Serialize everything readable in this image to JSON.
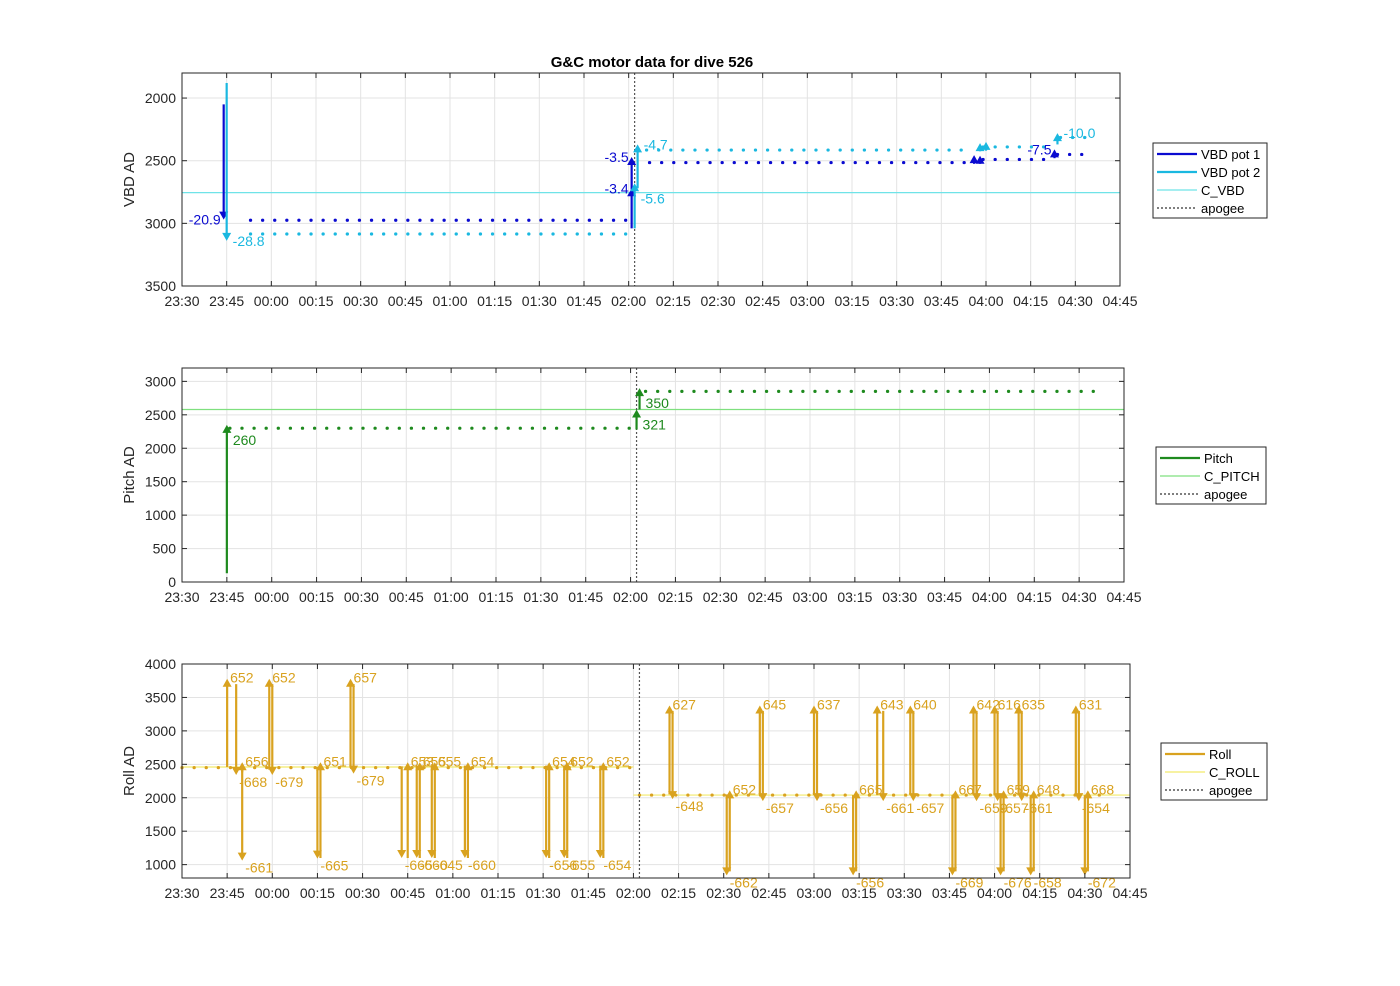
{
  "title": "G&C motor data for dive 526",
  "colors": {
    "vbd1": "#0a0ad0",
    "vbd2": "#1ab8e0",
    "c_vbd": "#6fe3e8",
    "pitch": "#1e8a1e",
    "c_pitch": "#7fe07f",
    "roll": "#d9a21f",
    "c_roll": "#f2ea6a",
    "apogee": "#555555",
    "grid": "#e3e3e3",
    "axis": "#262626"
  },
  "chart_data": [
    {
      "type": "line",
      "id": "vbd",
      "ylabel": "VBD AD",
      "y_reversed": true,
      "ylim": [
        1800,
        3500
      ],
      "yticks": [
        2000,
        2500,
        3000,
        3500
      ],
      "xlim": [
        "23:30",
        "04:45"
      ],
      "xticks": [
        "23:30",
        "23:45",
        "00:00",
        "00:15",
        "00:30",
        "00:45",
        "01:00",
        "01:15",
        "01:30",
        "01:45",
        "02:00",
        "02:15",
        "02:30",
        "02:45",
        "03:00",
        "03:15",
        "03:30",
        "03:45",
        "04:00",
        "04:15",
        "04:30",
        "04:45"
      ],
      "grid": true,
      "legend": [
        "VBD pot 1",
        "VBD pot 2",
        "C_VBD",
        "apogee"
      ],
      "series": [
        {
          "name": "VBD pot 1",
          "segments": [
            {
              "from": "23:53",
              "to": "02:00",
              "value": 2975
            },
            {
              "from": "02:07",
              "to": "03:55",
              "value": 2515
            },
            {
              "from": "03:59",
              "to": "04:22",
              "value": 2490
            },
            {
              "from": "04:24",
              "to": "04:35",
              "value": 2450
            }
          ]
        },
        {
          "name": "VBD pot 2",
          "segments": [
            {
              "from": "23:53",
              "to": "02:00",
              "value": 3085
            },
            {
              "from": "02:06",
              "to": "03:55",
              "value": 2415
            },
            {
              "from": "03:59",
              "to": "04:22",
              "value": 2390
            },
            {
              "from": "04:25",
              "to": "04:37",
              "value": 2315
            }
          ]
        }
      ],
      "reference_line": {
        "name": "C_VBD",
        "value": 2755
      },
      "apogee": "02:02",
      "moves": [
        {
          "series": "VBD pot 1",
          "time": "23:44",
          "from": 2050,
          "to": 2970,
          "label": "-20.9",
          "label_side": "left"
        },
        {
          "series": "VBD pot 2",
          "time": "23:45",
          "from": 1880,
          "to": 3140,
          "label": "-28.8",
          "label_side": "right"
        },
        {
          "series": "VBD pot 1",
          "time": "02:01",
          "from": 3040,
          "to": 2720,
          "label": "-3.4",
          "label_side": "left"
        },
        {
          "series": "VBD pot 1",
          "time": "02:01",
          "from": 2730,
          "to": 2470,
          "label": "-3.5",
          "label_side": "left"
        },
        {
          "series": "VBD pot 2",
          "time": "02:02",
          "from": 3040,
          "to": 2680,
          "label": "-5.6",
          "label_side": "right-below"
        },
        {
          "series": "VBD pot 2",
          "time": "02:03",
          "from": 2720,
          "to": 2370,
          "label": "-4.7",
          "label_side": "right"
        },
        {
          "series": "VBD pot 1",
          "time": "03:56",
          "from": 2525,
          "to": 2455,
          "label": "",
          "label_side": "none"
        },
        {
          "series": "VBD pot 1",
          "time": "03:58",
          "from": 2525,
          "to": 2460,
          "label": "",
          "label_side": "none"
        },
        {
          "series": "VBD pot 2",
          "time": "03:58",
          "from": 2425,
          "to": 2360,
          "label": "",
          "label_side": "none"
        },
        {
          "series": "VBD pot 2",
          "time": "04:00",
          "from": 2420,
          "to": 2350,
          "label": "",
          "label_side": "none"
        },
        {
          "series": "VBD pot 1",
          "time": "04:23",
          "from": 2480,
          "to": 2410,
          "label": "-7.5",
          "label_side": "left"
        },
        {
          "series": "VBD pot 2",
          "time": "04:24",
          "from": 2370,
          "to": 2280,
          "label": "-10.0",
          "label_side": "right"
        }
      ]
    },
    {
      "type": "line",
      "id": "pitch",
      "ylabel": "Pitch AD",
      "ylim": [
        0,
        3200
      ],
      "yticks": [
        0,
        500,
        1000,
        1500,
        2000,
        2500,
        3000
      ],
      "xlim": [
        "23:30",
        "04:45"
      ],
      "xticks": [
        "23:30",
        "23:45",
        "00:00",
        "00:15",
        "00:30",
        "00:45",
        "01:00",
        "01:15",
        "01:30",
        "01:45",
        "02:00",
        "02:15",
        "02:30",
        "02:45",
        "03:00",
        "03:15",
        "03:30",
        "03:45",
        "04:00",
        "04:15",
        "04:30",
        "04:45"
      ],
      "grid": true,
      "legend": [
        "Pitch",
        "C_PITCH",
        "apogee"
      ],
      "series": [
        {
          "name": "Pitch",
          "segments": [
            {
              "from": "23:46",
              "to": "02:00",
              "value": 2300
            },
            {
              "from": "02:05",
              "to": "04:35",
              "value": 2850
            }
          ]
        }
      ],
      "reference_line": {
        "name": "C_PITCH",
        "value": 2580
      },
      "apogee": "02:02",
      "moves": [
        {
          "series": "Pitch",
          "time": "23:45",
          "from": 130,
          "to": 2350,
          "label": "260",
          "label_side": "right-below"
        },
        {
          "series": "Pitch",
          "time": "02:02",
          "from": 2280,
          "to": 2580,
          "label": "321",
          "label_side": "right-below"
        },
        {
          "series": "Pitch",
          "time": "02:03",
          "from": 2580,
          "to": 2900,
          "label": "350",
          "label_side": "right-below"
        }
      ]
    },
    {
      "type": "line",
      "id": "roll",
      "ylabel": "Roll AD",
      "ylim": [
        800,
        4000
      ],
      "yticks": [
        1000,
        1500,
        2000,
        2500,
        3000,
        3500,
        4000
      ],
      "xlim": [
        "23:30",
        "04:45"
      ],
      "xticks": [
        "23:30",
        "23:45",
        "00:00",
        "00:15",
        "00:30",
        "00:45",
        "01:00",
        "01:15",
        "01:30",
        "01:45",
        "02:00",
        "02:15",
        "02:30",
        "02:45",
        "03:00",
        "03:15",
        "03:30",
        "03:45",
        "04:00",
        "04:15",
        "04:30",
        "04:45"
      ],
      "grid": true,
      "legend": [
        "Roll",
        "C_ROLL",
        "apogee"
      ],
      "series": [
        {
          "name": "Roll",
          "segments": [
            {
              "from": "23:30",
              "to": "02:00",
              "value": 2450
            },
            {
              "from": "02:02",
              "to": "04:35",
              "value": 2040
            }
          ]
        }
      ],
      "reference_lines": [
        {
          "name": "C_ROLL",
          "from": "23:30",
          "to": "02:00",
          "value": 2460
        },
        {
          "name": "C_ROLL",
          "from": "02:00",
          "to": "04:45",
          "value": 2040
        }
      ],
      "apogee": "02:02",
      "moves": [
        {
          "time": "23:45",
          "from": 2460,
          "to": 3780,
          "label": "652"
        },
        {
          "time": "23:48",
          "from": 3700,
          "to": 2340,
          "label": "-668"
        },
        {
          "time": "23:50",
          "from": 2450,
          "to": 1060,
          "label": "-661"
        },
        {
          "time": "23:50",
          "from": 2380,
          "to": 2530,
          "label": "656"
        },
        {
          "time": "23:59",
          "from": 2420,
          "to": 3780,
          "label": "652"
        },
        {
          "time": "24:00",
          "from": 3700,
          "to": 2340,
          "label": "-679"
        },
        {
          "time": "24:15",
          "from": 2460,
          "to": 1090,
          "label": "-665"
        },
        {
          "time": "24:16",
          "from": 1100,
          "to": 2530,
          "label": "651"
        },
        {
          "time": "24:26",
          "from": 2450,
          "to": 3780,
          "label": "657"
        },
        {
          "time": "24:27",
          "from": 3700,
          "to": 2360,
          "label": "-679"
        },
        {
          "time": "24:43",
          "from": 2470,
          "to": 1100,
          "label": "-665"
        },
        {
          "time": "24:45",
          "from": 1100,
          "to": 2530,
          "label": "653"
        },
        {
          "time": "24:48",
          "from": 2480,
          "to": 1100,
          "label": "-660"
        },
        {
          "time": "24:49",
          "from": 1100,
          "to": 2530,
          "label": "655"
        },
        {
          "time": "24:53",
          "from": 2480,
          "to": 1100,
          "label": "-645"
        },
        {
          "time": "24:54",
          "from": 1100,
          "to": 2530,
          "label": "655"
        },
        {
          "time": "25:04",
          "from": 2480,
          "to": 1100,
          "label": "-660"
        },
        {
          "time": "25:05",
          "from": 1100,
          "to": 2530,
          "label": "654"
        },
        {
          "time": "25:31",
          "from": 2480,
          "to": 1100,
          "label": "-656"
        },
        {
          "time": "25:32",
          "from": 1100,
          "to": 2530,
          "label": "654"
        },
        {
          "time": "25:37",
          "from": 2480,
          "to": 1100,
          "label": "-655"
        },
        {
          "time": "25:38",
          "from": 1100,
          "to": 2530,
          "label": "652"
        },
        {
          "time": "25:49",
          "from": 2480,
          "to": 1100,
          "label": "-654"
        },
        {
          "time": "25:50",
          "from": 1100,
          "to": 2530,
          "label": "652"
        },
        {
          "time": "26:12",
          "from": 2050,
          "to": 3380,
          "label": "627"
        },
        {
          "time": "26:13",
          "from": 3300,
          "to": 1980,
          "label": "-648"
        },
        {
          "time": "26:31",
          "from": 2050,
          "to": 840,
          "label": "-662"
        },
        {
          "time": "26:32",
          "from": 900,
          "to": 2110,
          "label": "652"
        },
        {
          "time": "26:42",
          "from": 2040,
          "to": 3380,
          "label": "645"
        },
        {
          "time": "26:43",
          "from": 3300,
          "to": 1950,
          "label": "-657"
        },
        {
          "time": "27:00",
          "from": 2040,
          "to": 3380,
          "label": "637"
        },
        {
          "time": "27:01",
          "from": 3300,
          "to": 1950,
          "label": "-656"
        },
        {
          "time": "27:13",
          "from": 2040,
          "to": 840,
          "label": "-656"
        },
        {
          "time": "27:14",
          "from": 900,
          "to": 2110,
          "label": "665"
        },
        {
          "time": "27:21",
          "from": 2040,
          "to": 3380,
          "label": "643"
        },
        {
          "time": "27:23",
          "from": 3300,
          "to": 1950,
          "label": "-661"
        },
        {
          "time": "27:32",
          "from": 2040,
          "to": 3380,
          "label": "640"
        },
        {
          "time": "27:33",
          "from": 3300,
          "to": 1950,
          "label": "-657"
        },
        {
          "time": "27:46",
          "from": 2040,
          "to": 840,
          "label": "-669"
        },
        {
          "time": "27:47",
          "from": 900,
          "to": 2110,
          "label": "667"
        },
        {
          "time": "27:53",
          "from": 2040,
          "to": 3380,
          "label": "642"
        },
        {
          "time": "27:54",
          "from": 3300,
          "to": 1950,
          "label": "-659"
        },
        {
          "time": "28:00",
          "from": 2040,
          "to": 3380,
          "label": "616"
        },
        {
          "time": "28:01",
          "from": 3300,
          "to": 1950,
          "label": "-657"
        },
        {
          "time": "28:02",
          "from": 2040,
          "to": 840,
          "label": "-676"
        },
        {
          "time": "28:03",
          "from": 900,
          "to": 2110,
          "label": "659"
        },
        {
          "time": "28:08",
          "from": 2040,
          "to": 3380,
          "label": "635"
        },
        {
          "time": "28:09",
          "from": 3300,
          "to": 1950,
          "label": "-661"
        },
        {
          "time": "28:12",
          "from": 2040,
          "to": 840,
          "label": "-658"
        },
        {
          "time": "28:13",
          "from": 900,
          "to": 2110,
          "label": "648"
        },
        {
          "time": "28:27",
          "from": 2040,
          "to": 3380,
          "label": "631"
        },
        {
          "time": "28:28",
          "from": 3300,
          "to": 1950,
          "label": "-654"
        },
        {
          "time": "28:30",
          "from": 2040,
          "to": 840,
          "label": "-672"
        },
        {
          "time": "28:31",
          "from": 900,
          "to": 2110,
          "label": "668"
        }
      ]
    }
  ]
}
